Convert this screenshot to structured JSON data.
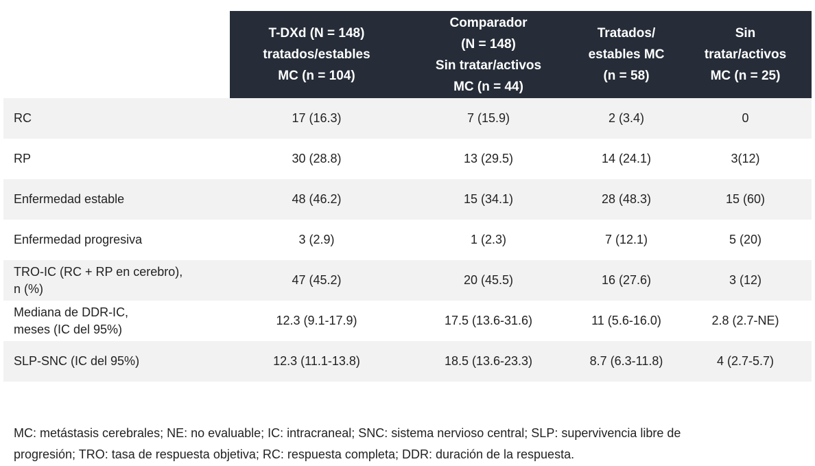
{
  "table": {
    "header": [
      [
        "T-DXd (N = 148)",
        "tratados/estables",
        "MC (n = 104)"
      ],
      [
        "Comparador",
        "(N = 148)",
        "Sin tratar/activos",
        "MC (n = 44)"
      ],
      [
        "Tratados/",
        "estables MC",
        "(n = 58)"
      ],
      [
        "Sin",
        "tratar/activos",
        "MC (n = 25)"
      ]
    ],
    "rows": [
      [
        [
          "RC"
        ],
        "17 (16.3)",
        "7 (15.9)",
        "2 (3.4)",
        "0"
      ],
      [
        [
          "RP"
        ],
        "30 (28.8)",
        "13 (29.5)",
        "14 (24.1)",
        "3(12)"
      ],
      [
        [
          "Enfermedad estable"
        ],
        "48 (46.2)",
        "15 (34.1)",
        "28 (48.3)",
        "15 (60)"
      ],
      [
        [
          "Enfermedad progresiva"
        ],
        "3 (2.9)",
        "1 (2.3)",
        "7 (12.1)",
        "5 (20)"
      ],
      [
        [
          "TRO-IC (RC + RP en cerebro),",
          "n (%)"
        ],
        "47 (45.2)",
        "20 (45.5)",
        "16 (27.6)",
        "3 (12)"
      ],
      [
        [
          "Mediana de DDR-IC,",
          "meses (IC del 95%)"
        ],
        "12.3 (9.1-17.9)",
        "17.5 (13.6-31.6)",
        "11 (5.6-16.0)",
        "2.8 (2.7-NE)"
      ],
      [
        [
          "SLP-SNC (IC del 95%)"
        ],
        "12.3 (11.1-13.8)",
        "18.5 (13.6-23.3)",
        "8.7 (6.3-11.8)",
        "4 (2.7-5.7)"
      ]
    ]
  },
  "footnote": [
    "MC: metástasis cerebrales; NE: no evaluable; IC: intracraneal; SNC: sistema nervioso central; SLP: supervivencia libre de",
    "progresión; TRO: tasa de respuesta objetiva; RC: respuesta completa; DDR: duración de la respuesta."
  ]
}
